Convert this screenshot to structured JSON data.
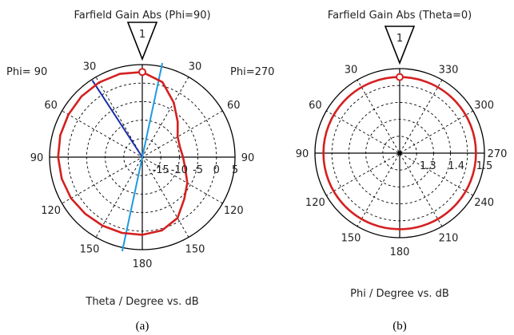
{
  "chart_data": [
    {
      "type": "polar",
      "title": "Farfield Gain Abs (Phi=90)",
      "xlabel": "Theta / Degree vs. dB",
      "left_label": "Phi= 90",
      "right_label": "Phi=270",
      "angle_labels_left": [
        "30",
        "60",
        "90",
        "120",
        "150"
      ],
      "angle_labels_right": [
        "30",
        "60",
        "90",
        "120",
        "150"
      ],
      "angle_label_top": "",
      "angle_label_bottom": "180",
      "radial_ticks": [
        "-15",
        "-10",
        "-5",
        "0",
        "5"
      ],
      "r_range": [
        -20,
        5
      ],
      "marker_label": "1",
      "marker_angle_deg": 0,
      "beam_lines_deg": [
        -33,
        12
      ],
      "series": [
        {
          "color": "#d42020",
          "points": [
            {
              "theta": 0,
              "db": 3.0
            },
            {
              "theta": 15,
              "db": 1.0
            },
            {
              "theta": 30,
              "db": -3.0
            },
            {
              "theta": 45,
              "db": -6.5
            },
            {
              "theta": 60,
              "db": -9.0
            },
            {
              "theta": 75,
              "db": -9.5
            },
            {
              "theta": 90,
              "db": -9.0
            },
            {
              "theta": 105,
              "db": -8.0
            },
            {
              "theta": 120,
              "db": -6.0
            },
            {
              "theta": 135,
              "db": -4.0
            },
            {
              "theta": 150,
              "db": -1.0
            },
            {
              "theta": 165,
              "db": 0.5
            },
            {
              "theta": 180,
              "db": 1.0
            },
            {
              "theta": 195,
              "db": 1.2
            },
            {
              "theta": 210,
              "db": 1.4
            },
            {
              "theta": 225,
              "db": 1.7
            },
            {
              "theta": 240,
              "db": 2.2
            },
            {
              "theta": 255,
              "db": 2.5
            },
            {
              "theta": 270,
              "db": 2.7
            },
            {
              "theta": 285,
              "db": 2.9
            },
            {
              "theta": 300,
              "db": 3.0
            },
            {
              "theta": 315,
              "db": 3.2
            },
            {
              "theta": 330,
              "db": 3.3
            },
            {
              "theta": 345,
              "db": 3.3
            },
            {
              "theta": 360,
              "db": 3.0
            }
          ]
        }
      ],
      "caption": "(a)"
    },
    {
      "type": "polar",
      "title": "Farfield Gain Abs (Theta=0)",
      "xlabel": "Phi / Degree vs. dB",
      "angle_labels_left": [
        "30",
        "60",
        "90",
        "120",
        "150"
      ],
      "angle_labels_right": [
        "330",
        "300",
        "270",
        "240",
        "210"
      ],
      "angle_label_top": "",
      "angle_label_bottom": "180",
      "radial_ticks": [
        "1.3",
        "1.4",
        "1.5"
      ],
      "r_range": [
        1.2,
        1.5
      ],
      "marker_label": "1",
      "marker_angle_deg": 0,
      "series": [
        {
          "color": "#d42020",
          "constant_value": 1.47
        }
      ],
      "caption": "(b)"
    }
  ],
  "colors": {
    "curve": "#d42020",
    "beam_dark": "#1a2ea8",
    "beam_light": "#1e9be0",
    "grid": "#000000"
  }
}
